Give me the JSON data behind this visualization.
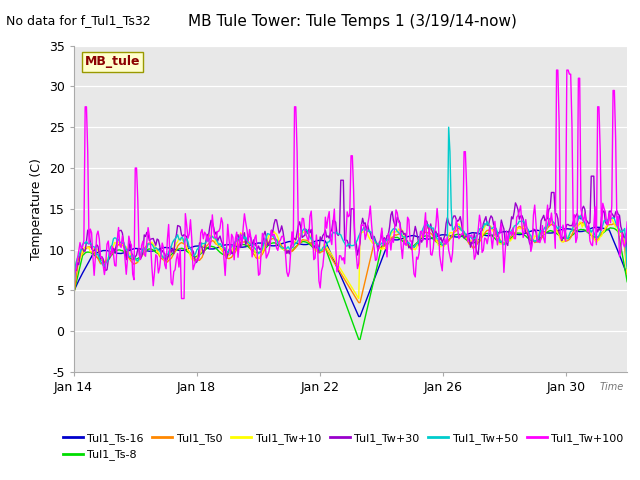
{
  "title": "MB Tule Tower: Tule Temps 1 (3/19/14-now)",
  "subtitle": "No data for f_Tul1_Ts32",
  "ylabel": "Temperature (C)",
  "xlabel_right": "Time",
  "ylim": [
    -5,
    35
  ],
  "background_color": "#ffffff",
  "plot_bg": "#e8e8e8",
  "xtick_labels": [
    "Jan 14",
    "Jan 18",
    "Jan 22",
    "Jan 26",
    "Jan 30"
  ],
  "ytick_values": [
    -5,
    0,
    5,
    10,
    15,
    20,
    25,
    30,
    35
  ],
  "legend_label": "MB_tule",
  "series_labels": [
    "Tul1_Ts-16",
    "Tul1_Ts-8",
    "Tul1_Ts0",
    "Tul1_Tw+10",
    "Tul1_Tw+30",
    "Tul1_Tw+50",
    "Tul1_Tw+100"
  ],
  "series_colors": [
    "#0000cc",
    "#00dd00",
    "#ff8800",
    "#ffff00",
    "#9900cc",
    "#00cccc",
    "#ff00ff"
  ],
  "line_width": 1.0,
  "title_fontsize": 11,
  "subtitle_fontsize": 9,
  "axis_fontsize": 9,
  "legend_fontsize": 8
}
